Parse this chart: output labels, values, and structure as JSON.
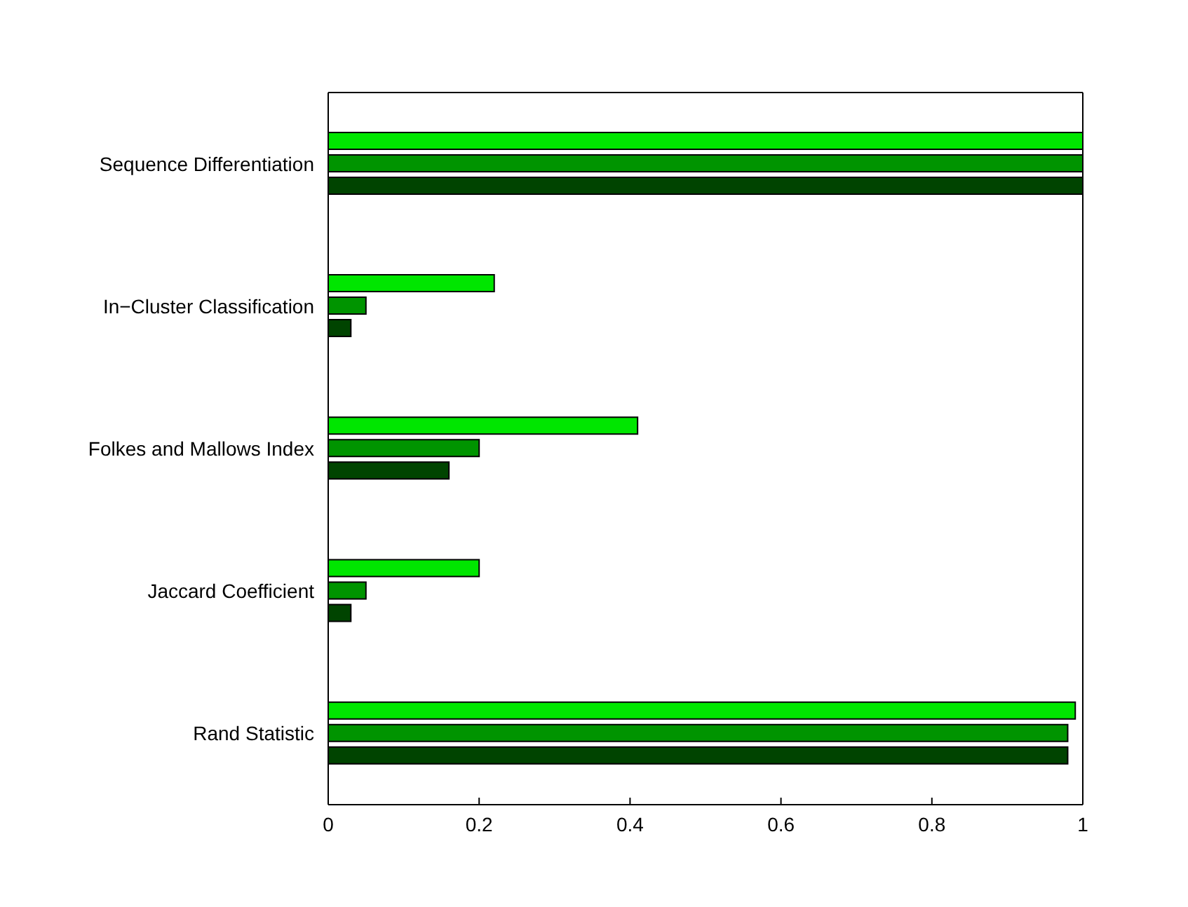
{
  "chart_data": {
    "type": "bar",
    "orientation": "horizontal",
    "categories": [
      "Sequence Differentiation",
      "In−Cluster Classification",
      "Folkes and Mallows Index",
      "Jaccard Coefficient",
      "Rand Statistic"
    ],
    "series": [
      {
        "color": "#00e600",
        "values": [
          1,
          0.22,
          0.41,
          0.2,
          0.99
        ]
      },
      {
        "color": "#009400",
        "values": [
          1,
          0.05,
          0.2,
          0.05,
          0.98
        ]
      },
      {
        "color": "#004400",
        "values": [
          1,
          0.03,
          0.16,
          0.03,
          0.98
        ]
      }
    ],
    "xlim": [
      0,
      1
    ],
    "xticks": [
      0,
      0.2,
      0.4,
      0.6,
      0.8,
      1
    ]
  }
}
